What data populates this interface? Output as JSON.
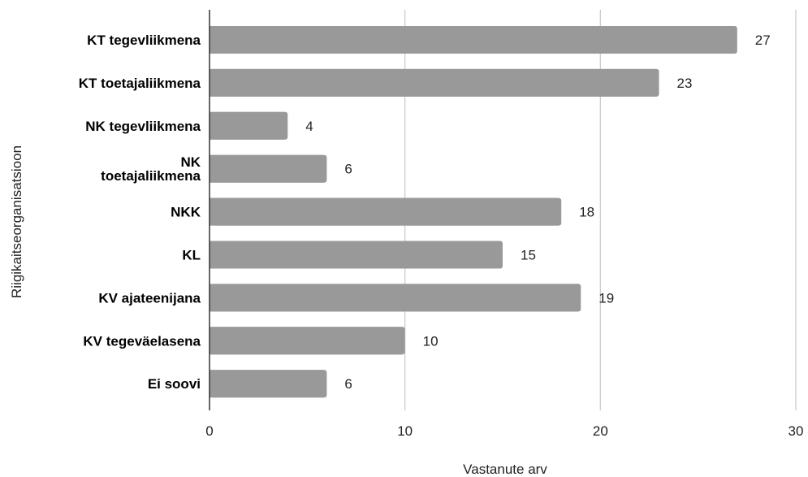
{
  "chart_data": {
    "type": "bar",
    "orientation": "horizontal",
    "categories": [
      "KT tegevliikmena",
      "KT toetajaliikmena",
      "NK tegevliikmena",
      "NK toetajaliikmena",
      "NKK",
      "KL",
      "KV ajateenijana",
      "KV tegeväelasena",
      "Ei soovi"
    ],
    "category_lines": [
      [
        "KT tegevliikmena"
      ],
      [
        "KT toetajaliikmena"
      ],
      [
        "NK tegevliikmena"
      ],
      [
        "NK",
        "toetajaliikmena"
      ],
      [
        "NKK"
      ],
      [
        "KL"
      ],
      [
        "KV ajateenijana"
      ],
      [
        "KV tegeväelasena"
      ],
      [
        "Ei soovi"
      ]
    ],
    "values": [
      27,
      23,
      4,
      6,
      18,
      15,
      19,
      10,
      6
    ],
    "title": "",
    "xlabel": "Vastanute arv",
    "ylabel": "Riigikaitseorganisatsioon",
    "xlim": [
      0,
      30
    ],
    "xticks": [
      0,
      10,
      20,
      30
    ],
    "grid": true,
    "bar_color": "#999999",
    "grid_color": "#cccccc",
    "axis_color": "#333333"
  }
}
